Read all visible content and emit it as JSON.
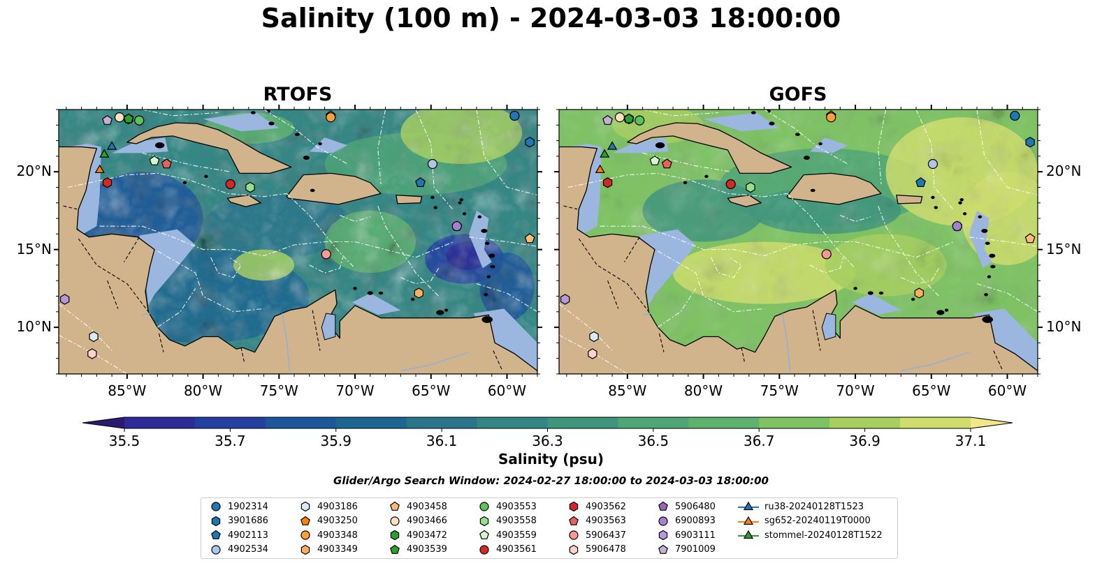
{
  "title": "Salinity (100 m) - 2024-03-03 18:00:00",
  "panels": [
    {
      "title": "RTOFS",
      "model": "rtofs"
    },
    {
      "title": "GOFS",
      "model": "gofs"
    }
  ],
  "map": {
    "lon_range": [
      -89.5,
      -58.0
    ],
    "lat_range": [
      7.0,
      24.0
    ],
    "lon_ticks": [
      {
        "value": -85,
        "label": "85°W"
      },
      {
        "value": -80,
        "label": "80°W"
      },
      {
        "value": -75,
        "label": "75°W"
      },
      {
        "value": -70,
        "label": "70°W"
      },
      {
        "value": -65,
        "label": "65°W"
      },
      {
        "value": -60,
        "label": "60°W"
      }
    ],
    "lat_ticks": [
      {
        "value": 20,
        "label": "20°N"
      },
      {
        "value": 15,
        "label": "15°N"
      },
      {
        "value": 10,
        "label": "10°N"
      }
    ],
    "colors": {
      "land": "#d2b48c",
      "shallow_ocean": "#9bb6df",
      "coastline": "#000000",
      "eez_lines": "#ffffff"
    }
  },
  "colorbar": {
    "label": "Salinity (psu)",
    "min": 35.4,
    "max": 37.2,
    "step": 0.1,
    "ticks": [
      "35.5",
      "35.7",
      "35.9",
      "36.1",
      "36.3",
      "36.5",
      "36.7",
      "36.9",
      "37.1"
    ],
    "tick_values": [
      35.5,
      35.7,
      35.9,
      36.1,
      36.3,
      36.5,
      36.7,
      36.9,
      37.1
    ],
    "colors": [
      "#2b1a6e",
      "#2c2b98",
      "#2340a0",
      "#1d569a",
      "#1c6691",
      "#2a758b",
      "#348684",
      "#3f957c",
      "#4ea576",
      "#5eb26e",
      "#7ec264",
      "#a6cf60",
      "#cedd6c",
      "#f2e88a"
    ]
  },
  "search_window": "Glider/Argo Search Window: 2024-02-27 18:00:00 to 2024-03-03 18:00:00",
  "legend": [
    {
      "label": "1902314",
      "marker": "circle",
      "color": "#1f77b4"
    },
    {
      "label": "3901686",
      "marker": "hexagon",
      "color": "#1f77b4"
    },
    {
      "label": "4902113",
      "marker": "pentagon",
      "color": "#1f77b4"
    },
    {
      "label": "4902534",
      "marker": "circle",
      "color": "#aec7e8"
    },
    {
      "label": "4903186",
      "marker": "hexagon",
      "color": "#d8ecf7"
    },
    {
      "label": "4903250",
      "marker": "pentagon",
      "color": "#ff7f0e"
    },
    {
      "label": "4903348",
      "marker": "circle",
      "color": "#ff9f3a"
    },
    {
      "label": "4903349",
      "marker": "hexagon",
      "color": "#ffae5c"
    },
    {
      "label": "4903458",
      "marker": "pentagon",
      "color": "#ffbb78"
    },
    {
      "label": "4903466",
      "marker": "circle",
      "color": "#ffe0c0"
    },
    {
      "label": "4903472",
      "marker": "hexagon",
      "color": "#2ca02c"
    },
    {
      "label": "4903539",
      "marker": "pentagon",
      "color": "#2ca02c"
    },
    {
      "label": "4903553",
      "marker": "circle",
      "color": "#5cc25c"
    },
    {
      "label": "4903558",
      "marker": "hexagon",
      "color": "#98df8a"
    },
    {
      "label": "4903559",
      "marker": "pentagon",
      "color": "#d6f5cc"
    },
    {
      "label": "4903561",
      "marker": "circle",
      "color": "#d62728"
    },
    {
      "label": "4903562",
      "marker": "hexagon",
      "color": "#d62728"
    },
    {
      "label": "4903563",
      "marker": "pentagon",
      "color": "#e96060"
    },
    {
      "label": "5906437",
      "marker": "circle",
      "color": "#ff9896"
    },
    {
      "label": "5906478",
      "marker": "hexagon",
      "color": "#ffd2d0"
    },
    {
      "label": "5906480",
      "marker": "pentagon",
      "color": "#9467bd"
    },
    {
      "label": "6900893",
      "marker": "circle",
      "color": "#a77fd0"
    },
    {
      "label": "6903111",
      "marker": "hexagon",
      "color": "#b898dc"
    },
    {
      "label": "7901009",
      "marker": "pentagon",
      "color": "#c5b0d5"
    },
    {
      "label": "ru38-20240128T1523",
      "marker": "triangle",
      "color": "#1f77b4"
    },
    {
      "label": "sg652-20240119T0000",
      "marker": "triangle",
      "color": "#ff7f0e"
    },
    {
      "label": "stommel-20240128T1522",
      "marker": "triangle",
      "color": "#2ca02c"
    }
  ],
  "observations": [
    {
      "id": "1902314",
      "lon": -59.5,
      "lat": 23.6
    },
    {
      "id": "3901686",
      "lon": -58.5,
      "lat": 21.9
    },
    {
      "id": "4902113",
      "lon": -65.7,
      "lat": 19.3
    },
    {
      "id": "4902534",
      "lon": -64.9,
      "lat": 20.5
    },
    {
      "id": "4903186",
      "lon": -87.2,
      "lat": 9.4
    },
    {
      "id": "4903250",
      "lon": -71.6,
      "lat": 23.6
    },
    {
      "id": "4903348",
      "lon": -71.6,
      "lat": 23.5
    },
    {
      "id": "4903349",
      "lon": -65.8,
      "lat": 12.2
    },
    {
      "id": "4903458",
      "lon": -58.5,
      "lat": 15.7
    },
    {
      "id": "4903466",
      "lon": -85.5,
      "lat": 23.5
    },
    {
      "id": "4903472",
      "lon": -84.9,
      "lat": 23.4
    },
    {
      "id": "4903539",
      "lon": -84.9,
      "lat": 23.4
    },
    {
      "id": "4903553",
      "lon": -84.2,
      "lat": 23.3
    },
    {
      "id": "4903558",
      "lon": -76.9,
      "lat": 19.0
    },
    {
      "id": "4903559",
      "lon": -83.2,
      "lat": 20.7
    },
    {
      "id": "4903561",
      "lon": -78.2,
      "lat": 19.2
    },
    {
      "id": "4903562",
      "lon": -86.3,
      "lat": 19.3
    },
    {
      "id": "4903563",
      "lon": -82.4,
      "lat": 20.5
    },
    {
      "id": "5906437",
      "lon": -71.9,
      "lat": 14.7
    },
    {
      "id": "5906478",
      "lon": -87.3,
      "lat": 8.3
    },
    {
      "id": "5906480",
      "lon": -63.3,
      "lat": 16.5
    },
    {
      "id": "6900893",
      "lon": -63.3,
      "lat": 16.5
    },
    {
      "id": "6903111",
      "lon": -89.1,
      "lat": 11.8
    },
    {
      "id": "7901009",
      "lon": -86.3,
      "lat": 23.3
    },
    {
      "id": "ru38-20240128T1523",
      "lon": -86.0,
      "lat": 21.6
    },
    {
      "id": "sg652-20240119T0000",
      "lon": -86.8,
      "lat": 20.1
    },
    {
      "id": "stommel-20240128T1522",
      "lon": -86.5,
      "lat": 21.1
    }
  ]
}
